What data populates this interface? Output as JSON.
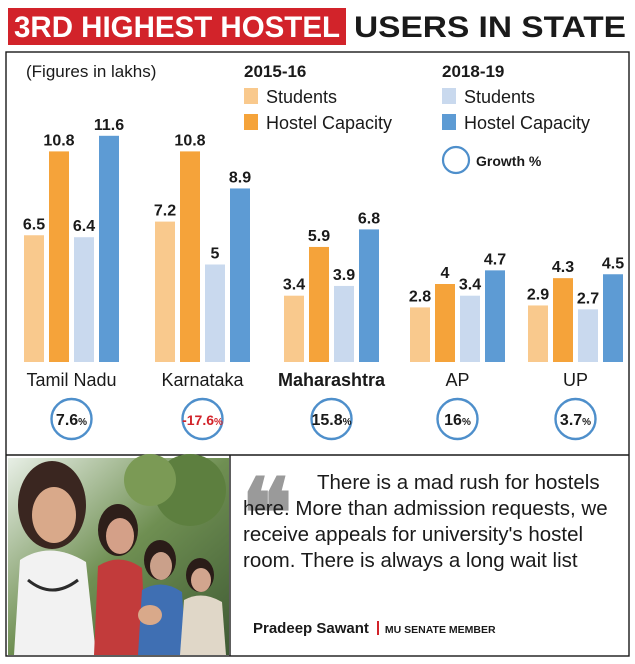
{
  "page": {
    "headline_highlight": "3RD HIGHEST HOSTEL",
    "headline_rest": "USERS IN STATE",
    "colors": {
      "headline_bg": "#d2232a",
      "frame": "#1a1a1a",
      "students_2015": "#f9c98d",
      "capacity_2015": "#f5a33a",
      "students_2018": "#c9d9ee",
      "capacity_2018": "#5d9bd4",
      "growth_circle": "#4e8fcb",
      "negative": "#d2232a"
    }
  },
  "chart_data": {
    "type": "bar",
    "note": "(Figures in lakhs)",
    "categories": [
      "Tamil Nadu",
      "Karnataka",
      "Maharashtra",
      "AP",
      "UP"
    ],
    "legend": {
      "groups": [
        {
          "title": "2015-16",
          "entries": [
            {
              "label": "Students",
              "color": "#f9c98d"
            },
            {
              "label": "Hostel Capacity",
              "color": "#f5a33a"
            }
          ]
        },
        {
          "title": "2018-19",
          "entries": [
            {
              "label": "Students",
              "color": "#c9d9ee"
            },
            {
              "label": "Hostel Capacity",
              "color": "#5d9bd4"
            }
          ]
        }
      ],
      "growth_label": "Growth %"
    },
    "series": [
      {
        "values": [
          6.5,
          7.2,
          3.4,
          2.8,
          2.9
        ],
        "labels": [
          "6.5",
          "7.2",
          "3.4",
          "2.8",
          "2.9"
        ],
        "color": "#f9c98d"
      },
      {
        "values": [
          10.8,
          10.8,
          5.9,
          4,
          4.3
        ],
        "labels": [
          "10.8",
          "10.8",
          "5.9",
          "4",
          "4.3"
        ],
        "color": "#f5a33a"
      },
      {
        "values": [
          6.4,
          5,
          3.9,
          3.4,
          2.7
        ],
        "labels": [
          "6.4",
          "5",
          "3.9",
          "3.4",
          "2.7"
        ],
        "color": "#c9d9ee"
      },
      {
        "values": [
          11.6,
          8.9,
          6.8,
          4.7,
          4.5
        ],
        "labels": [
          "11.6",
          "8.9",
          "6.8",
          "4.7",
          "4.5"
        ],
        "color": "#5d9bd4"
      }
    ],
    "growth": [
      {
        "value": "7.6",
        "unit": "%",
        "negative": false
      },
      {
        "value": "-17.6",
        "unit": "%",
        "negative": true
      },
      {
        "value": "15.8",
        "unit": "%",
        "negative": false
      },
      {
        "value": "16",
        "unit": "%",
        "negative": false
      },
      {
        "value": "3.7",
        "unit": "%",
        "negative": false
      }
    ],
    "ylim": [
      0,
      12
    ],
    "grid": false
  },
  "quote": {
    "text": "There is a mad rush for hostels here. More than admission requests, we receive appeals for university's hostel room. There is always a long wait list",
    "name": "Pradeep Sawant",
    "role": "MU SENATE MEMBER"
  }
}
